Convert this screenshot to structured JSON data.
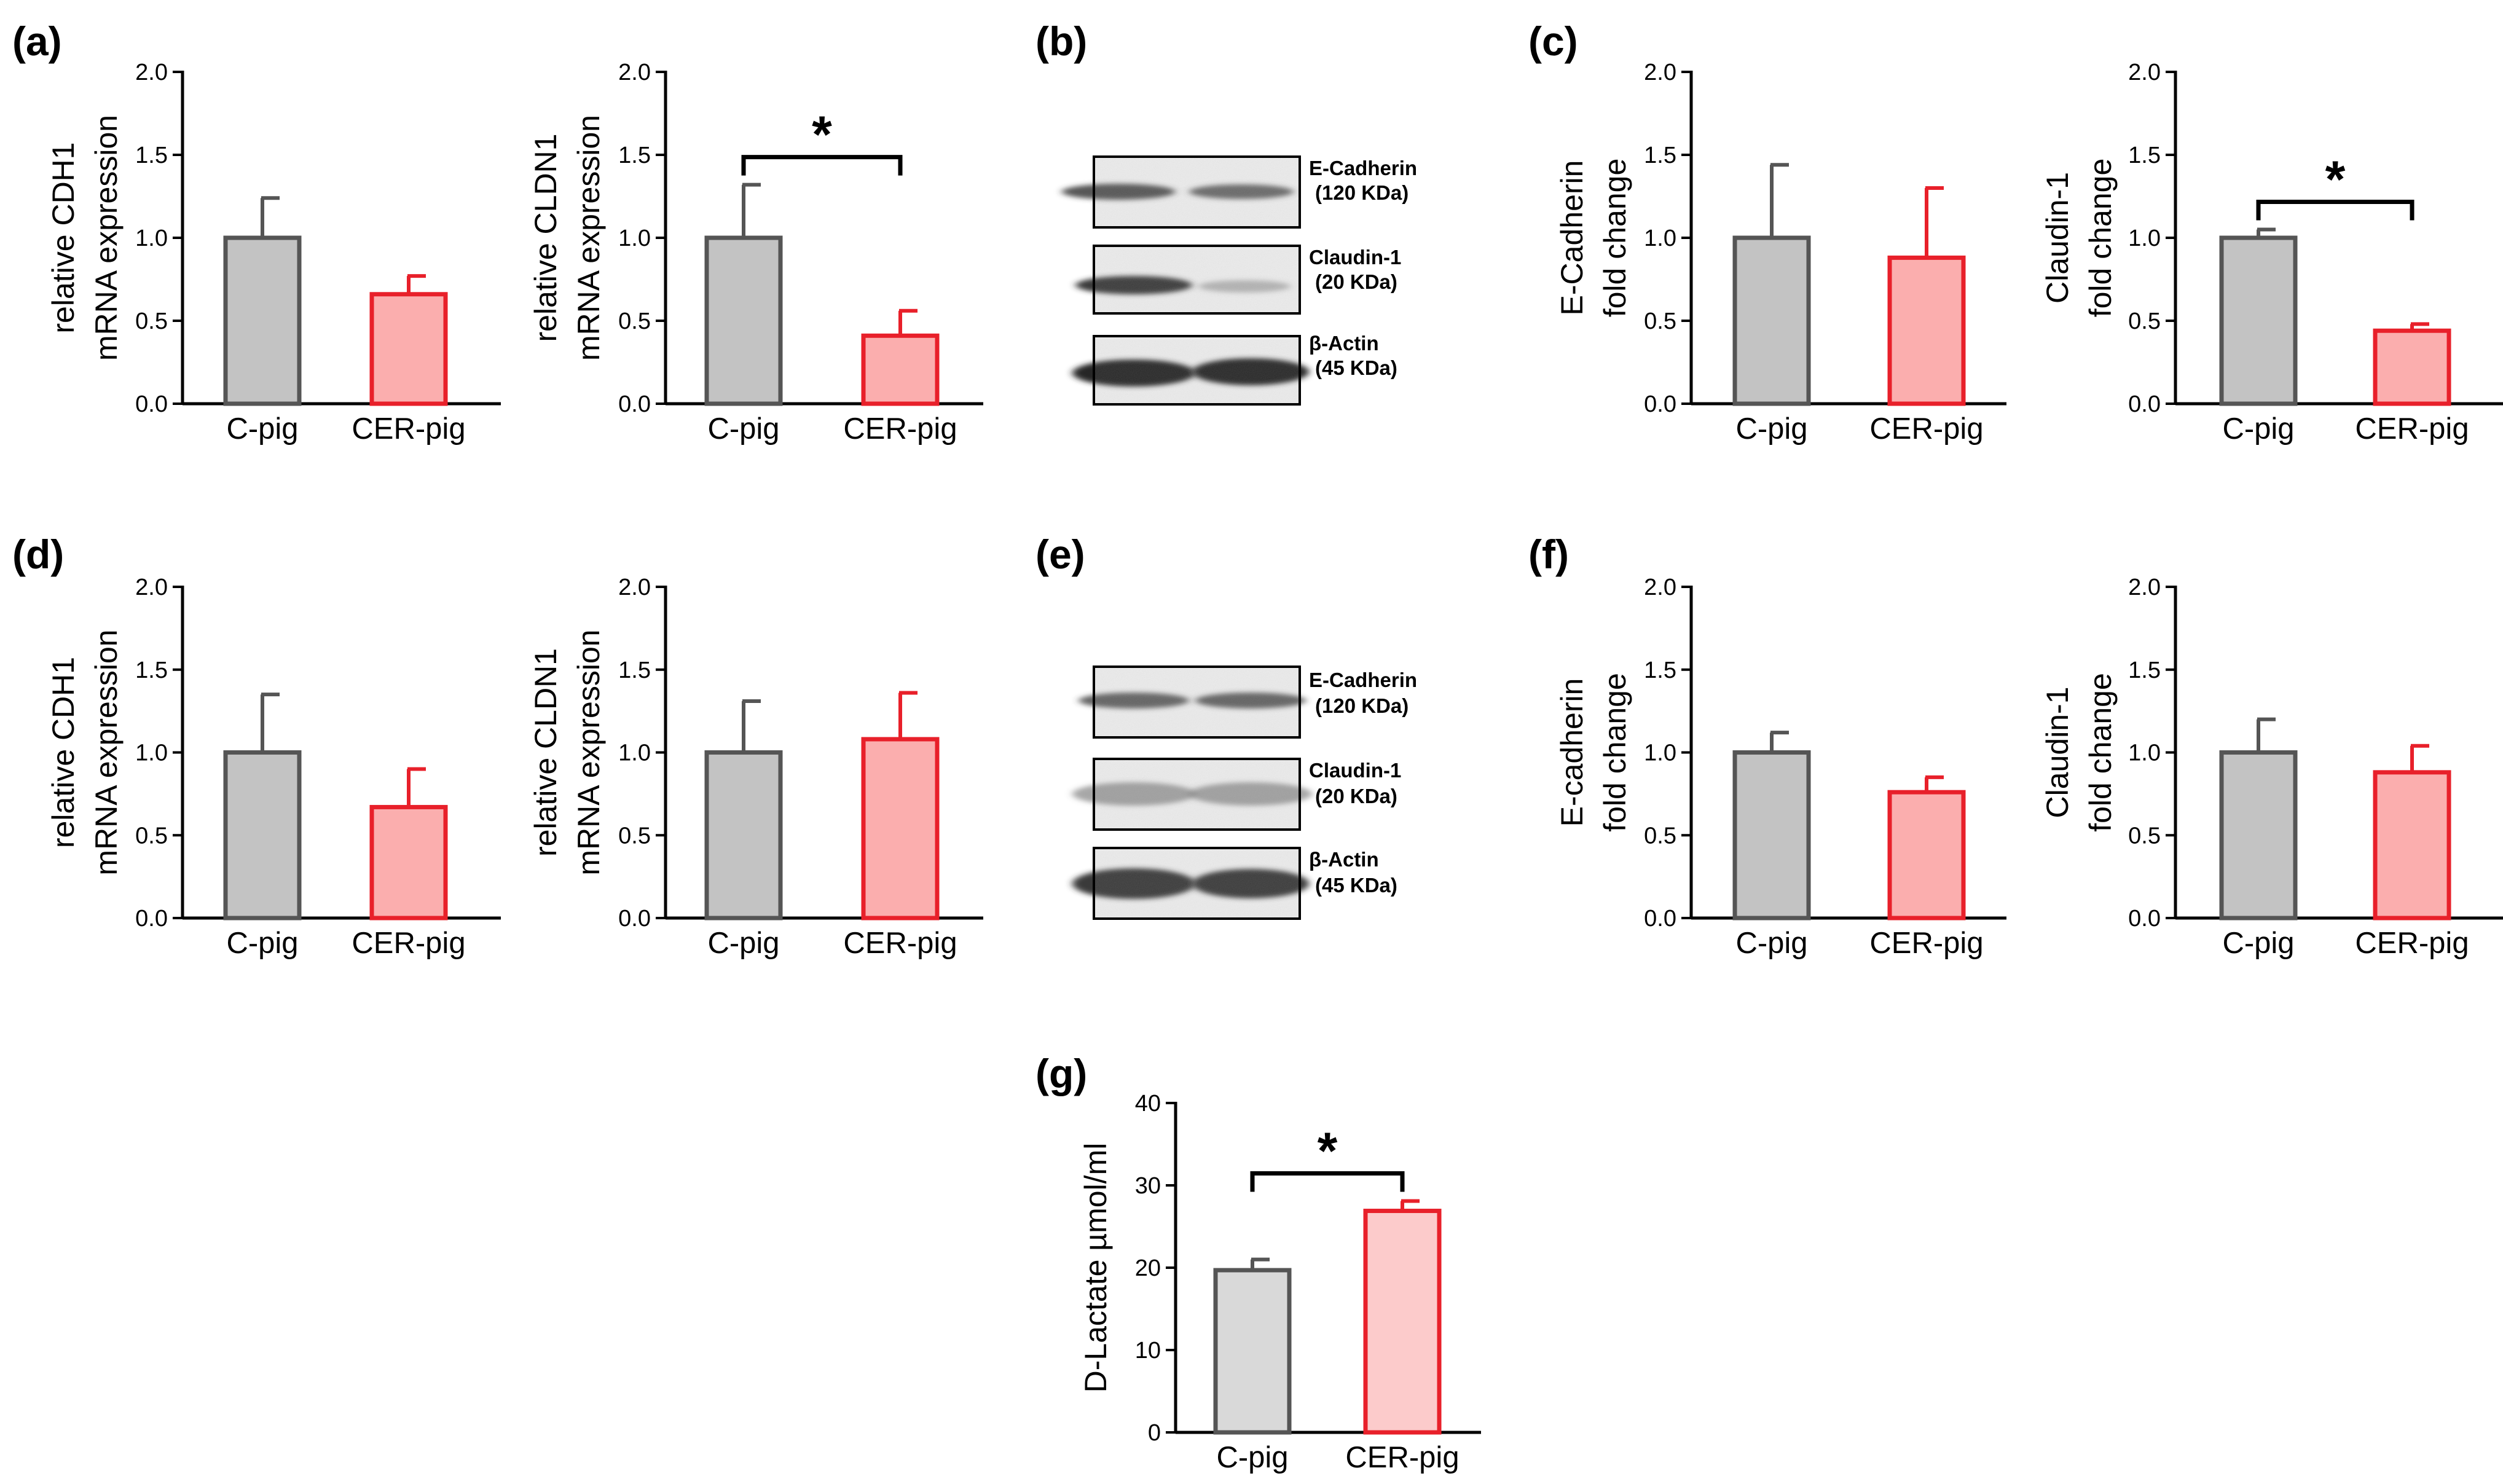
{
  "colors": {
    "control_fill": "#c3c3c3",
    "control_stroke": "#555555",
    "treat_fill": "#fbaeae",
    "treat_stroke": "#e8202a",
    "control_fill_light": "#d9d9d9",
    "treat_fill_light": "#fccbcb"
  },
  "blots": [
    {
      "label": "(b)",
      "bands": [
        {
          "name": "E-Cadherin",
          "size": "(120 KDa)"
        },
        {
          "name": "Claudin-1",
          "size": "(20 KDa)"
        },
        {
          "name": "β-Actin",
          "size": "(45 KDa)"
        }
      ]
    },
    {
      "label": "(e)",
      "bands": [
        {
          "name": "E-Cadherin",
          "size": "(120 KDa)"
        },
        {
          "name": "Claudin-1",
          "size": "(20 KDa)"
        },
        {
          "name": "β-Actin",
          "size": "(45 KDa)"
        }
      ]
    }
  ],
  "chart_data": [
    {
      "type": "bar",
      "panel": "(a)",
      "categories": [
        "C-pig",
        "CER-pig"
      ],
      "values": [
        1.0,
        0.66
      ],
      "errors": [
        0.24,
        0.11
      ],
      "ylabel": [
        "relative CDH1",
        "mRNA expression"
      ],
      "ylim": [
        0,
        2.0
      ],
      "yticks": [
        "0.0",
        "0.5",
        "1.0",
        "1.5",
        "2.0"
      ],
      "significance": ""
    },
    {
      "type": "bar",
      "panel": "",
      "categories": [
        "C-pig",
        "CER-pig"
      ],
      "values": [
        1.0,
        0.41
      ],
      "errors": [
        0.32,
        0.15
      ],
      "ylabel": [
        "relative CLDN1",
        "mRNA expression"
      ],
      "ylim": [
        0,
        2.0
      ],
      "yticks": [
        "0.0",
        "0.5",
        "1.0",
        "1.5",
        "2.0"
      ],
      "significance": "*"
    },
    {
      "type": "bar",
      "panel": "(c)",
      "categories": [
        "C-pig",
        "CER-pig"
      ],
      "values": [
        1.0,
        0.88
      ],
      "errors": [
        0.44,
        0.42
      ],
      "ylabel": [
        "E-Cadherin",
        "fold change"
      ],
      "ylim": [
        0,
        2.0
      ],
      "yticks": [
        "0.0",
        "0.5",
        "1.0",
        "1.5",
        "2.0"
      ],
      "significance": ""
    },
    {
      "type": "bar",
      "panel": "",
      "categories": [
        "C-pig",
        "CER-pig"
      ],
      "values": [
        1.0,
        0.44
      ],
      "errors": [
        0.05,
        0.04
      ],
      "ylabel": [
        "Claudin-1",
        "fold change"
      ],
      "ylim": [
        0,
        2.0
      ],
      "yticks": [
        "0.0",
        "0.5",
        "1.0",
        "1.5",
        "2.0"
      ],
      "significance": "*"
    },
    {
      "type": "bar",
      "panel": "(d)",
      "categories": [
        "C-pig",
        "CER-pig"
      ],
      "values": [
        1.0,
        0.67
      ],
      "errors": [
        0.35,
        0.23
      ],
      "ylabel": [
        "relative CDH1",
        "mRNA expression"
      ],
      "ylim": [
        0,
        2.0
      ],
      "yticks": [
        "0.0",
        "0.5",
        "1.0",
        "1.5",
        "2.0"
      ],
      "significance": ""
    },
    {
      "type": "bar",
      "panel": "",
      "categories": [
        "C-pig",
        "CER-pig"
      ],
      "values": [
        1.0,
        1.08
      ],
      "errors": [
        0.31,
        0.28
      ],
      "ylabel": [
        "relative CLDN1",
        "mRNA expression"
      ],
      "ylim": [
        0,
        2.0
      ],
      "yticks": [
        "0.0",
        "0.5",
        "1.0",
        "1.5",
        "2.0"
      ],
      "significance": ""
    },
    {
      "type": "bar",
      "panel": "(f)",
      "categories": [
        "C-pig",
        "CER-pig"
      ],
      "values": [
        1.0,
        0.76
      ],
      "errors": [
        0.12,
        0.09
      ],
      "ylabel": [
        "E-cadherin",
        "fold change"
      ],
      "ylim": [
        0,
        2.0
      ],
      "yticks": [
        "0.0",
        "0.5",
        "1.0",
        "1.5",
        "2.0"
      ],
      "significance": ""
    },
    {
      "type": "bar",
      "panel": "",
      "categories": [
        "C-pig",
        "CER-pig"
      ],
      "values": [
        1.0,
        0.88
      ],
      "errors": [
        0.2,
        0.16
      ],
      "ylabel": [
        "Claudin-1",
        "fold change"
      ],
      "ylim": [
        0,
        2.0
      ],
      "yticks": [
        "0.0",
        "0.5",
        "1.0",
        "1.5",
        "2.0"
      ],
      "significance": ""
    },
    {
      "type": "bar",
      "panel": "(g)",
      "categories": [
        "C-pig",
        "CER-pig"
      ],
      "values": [
        19.7,
        26.9
      ],
      "errors": [
        1.3,
        1.2
      ],
      "ylabel": [
        "D-Lactate  µmol/ml"
      ],
      "ylim": [
        0,
        40
      ],
      "yticks": [
        "0",
        "10",
        "20",
        "30",
        "40"
      ],
      "significance": "*"
    }
  ]
}
